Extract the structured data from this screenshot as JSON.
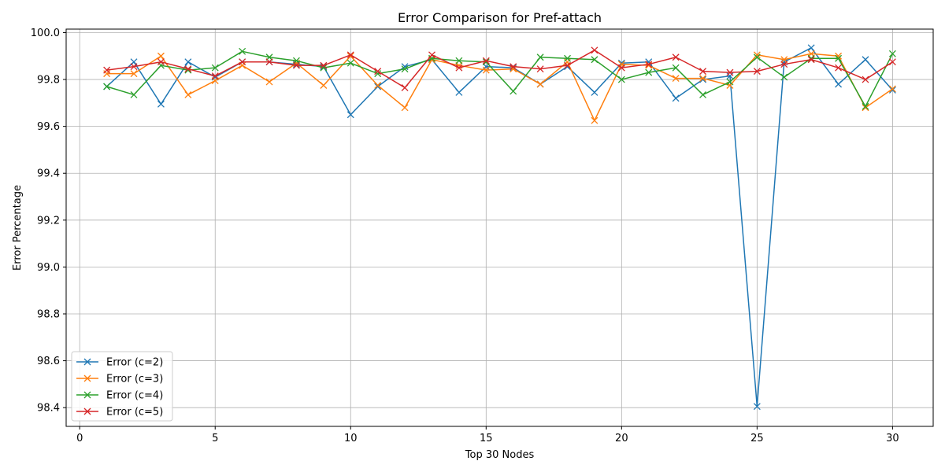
{
  "chart_data": {
    "type": "line",
    "title": "Error Comparison for Pref-attach",
    "xlabel": "Top 30 Nodes",
    "ylabel": "Error Percentage",
    "xlim": [
      -0.5,
      31.5
    ],
    "ylim": [
      98.32,
      100.015
    ],
    "xticks": [
      0,
      5,
      10,
      15,
      20,
      25,
      30
    ],
    "yticks": [
      98.4,
      98.6,
      98.8,
      99.0,
      99.2,
      99.4,
      99.6,
      99.8,
      100.0
    ],
    "ytick_labels": [
      "98.4",
      "98.6",
      "98.8",
      "99.0",
      "99.2",
      "99.4",
      "99.6",
      "99.8",
      "100.0"
    ],
    "grid": true,
    "legend_position": "lower-left",
    "marker": "x",
    "x": [
      1,
      2,
      3,
      4,
      5,
      6,
      7,
      8,
      9,
      10,
      11,
      12,
      13,
      14,
      15,
      16,
      17,
      18,
      19,
      20,
      21,
      22,
      23,
      24,
      25,
      26,
      27,
      28,
      29,
      30
    ],
    "series": [
      {
        "name": "Error (c=2)",
        "color": "#1f77b4",
        "values": [
          99.77,
          99.875,
          99.695,
          99.875,
          99.81,
          99.875,
          99.875,
          99.865,
          99.855,
          99.65,
          99.77,
          99.855,
          99.885,
          99.745,
          99.855,
          99.85,
          99.78,
          99.855,
          99.745,
          99.87,
          99.875,
          99.72,
          99.8,
          99.815,
          98.405,
          99.875,
          99.935,
          99.78,
          99.885,
          99.755
        ]
      },
      {
        "name": "Error (c=3)",
        "color": "#ff7f0e",
        "values": [
          99.825,
          99.825,
          99.9,
          99.735,
          99.795,
          99.86,
          99.79,
          99.87,
          99.775,
          99.9,
          99.775,
          99.68,
          99.885,
          99.86,
          99.84,
          99.845,
          99.78,
          99.875,
          99.625,
          99.865,
          99.86,
          99.805,
          99.805,
          99.775,
          99.905,
          99.885,
          99.91,
          99.9,
          99.68,
          99.76
        ]
      },
      {
        "name": "Error (c=4)",
        "color": "#2ca02c",
        "values": [
          99.77,
          99.735,
          99.86,
          99.84,
          99.85,
          99.92,
          99.895,
          99.88,
          99.85,
          99.87,
          99.825,
          99.845,
          99.89,
          99.88,
          99.875,
          99.75,
          99.895,
          99.89,
          99.885,
          99.8,
          99.83,
          99.85,
          99.735,
          99.79,
          99.895,
          99.81,
          99.89,
          99.89,
          99.685,
          99.91
        ]
      },
      {
        "name": "Error (c=5)",
        "color": "#d62728",
        "values": [
          99.84,
          99.855,
          99.875,
          99.845,
          99.815,
          99.875,
          99.875,
          99.86,
          99.86,
          99.905,
          99.835,
          99.765,
          99.905,
          99.85,
          99.88,
          99.855,
          99.845,
          99.86,
          99.925,
          99.85,
          99.865,
          99.895,
          99.835,
          99.83,
          99.835,
          99.865,
          99.885,
          99.85,
          99.8,
          99.875
        ]
      }
    ]
  }
}
